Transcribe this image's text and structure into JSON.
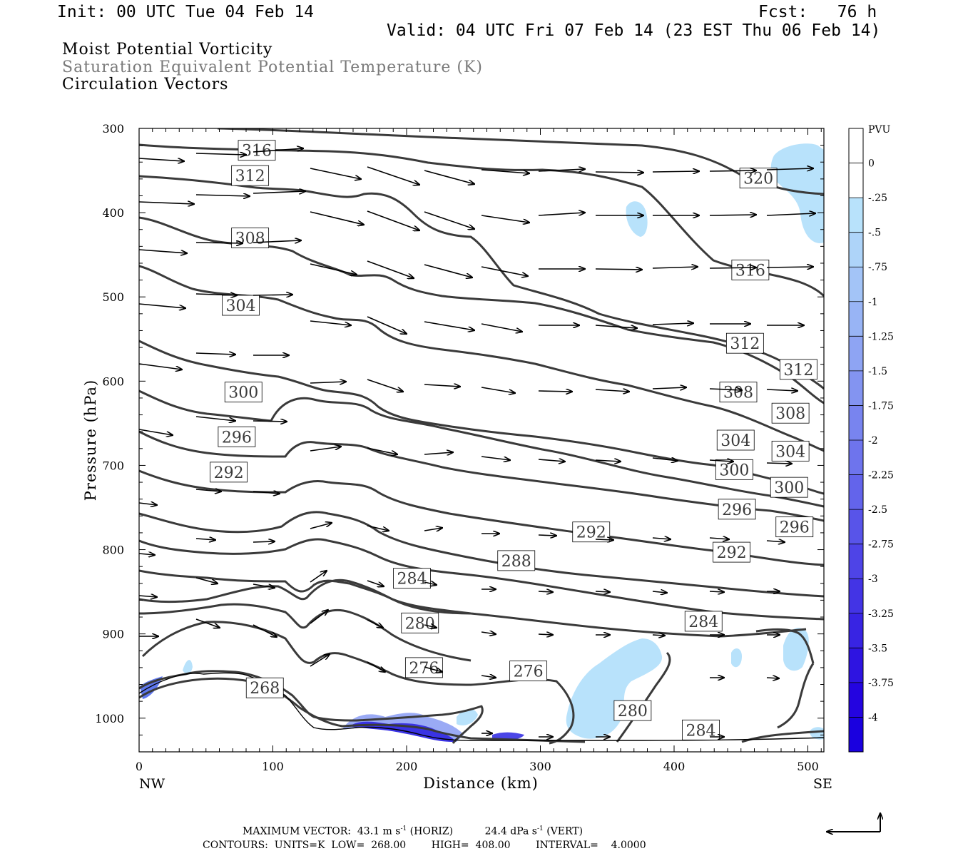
{
  "header": {
    "init": "Init: 00 UTC Tue 04 Feb 14",
    "fcst": "Fcst:   76 h",
    "valid": "Valid: 04 UTC Fri 07 Feb 14 (23 EST Thu 06 Feb 14)"
  },
  "legend": {
    "line1": "Moist Potential Vorticity",
    "line2": "Saturation Equivalent Potential Temperature (K)",
    "line3": "Circulation Vectors"
  },
  "footer": {
    "max_vector_label": "MAXIMUM VECTOR:",
    "max_horiz": "43.1 m s",
    "max_horiz_units": "(HORIZ)",
    "max_vert": "24.4 dPa s",
    "max_vert_units": "(VERT)",
    "exp": "-1",
    "contours_line": "CONTOURS:  UNITS=K  LOW=  268.00        HIGH=  408.00        INTERVAL=    4.0000"
  },
  "colorbar": {
    "title": "PVU",
    "labels": [
      "0",
      "-.25",
      "-.5",
      "-.75",
      "-1",
      "-1.25",
      "-1.5",
      "-1.75",
      "-2",
      "-2.25",
      "-2.5",
      "-2.75",
      "-3",
      "-3.25",
      "-3.5",
      "-3.75",
      "-4"
    ],
    "colors": [
      "#ffffff",
      "#ffffff",
      "#b8e2fb",
      "#aed4f9",
      "#a3c4f7",
      "#98b4f5",
      "#8ea4f3",
      "#8394f1",
      "#7884ef",
      "#6e74ed",
      "#6364eb",
      "#5854e9",
      "#4e44e7",
      "#4334e5",
      "#3824e3",
      "#2e14e1",
      "#2404e0",
      "#1a00df"
    ]
  },
  "chart_data": {
    "type": "cross-section",
    "xlabel": "Distance (km)",
    "ylabel": "Pressure (hPa)",
    "xlim": [
      0,
      512
    ],
    "ylim": [
      1040,
      300
    ],
    "x_ticks": [
      0,
      100,
      200,
      300,
      400,
      500
    ],
    "y_ticks": [
      300,
      400,
      500,
      600,
      700,
      800,
      900,
      1000
    ],
    "x_end_labels": {
      "left": "NW",
      "right": "SE"
    },
    "contour_units": "K",
    "contour_low": 268,
    "contour_high": 408,
    "contour_interval": 4,
    "contour_labels": [
      {
        "value": "316",
        "x": 88,
        "p": 326
      },
      {
        "value": "312",
        "x": 83,
        "p": 356
      },
      {
        "value": "308",
        "x": 83,
        "p": 430
      },
      {
        "value": "304",
        "x": 76,
        "p": 510
      },
      {
        "value": "300",
        "x": 78,
        "p": 613
      },
      {
        "value": "296",
        "x": 73,
        "p": 666
      },
      {
        "value": "292",
        "x": 67,
        "p": 708
      },
      {
        "value": "288",
        "x": 282,
        "p": 813
      },
      {
        "value": "292",
        "x": 338,
        "p": 779
      },
      {
        "value": "284",
        "x": 204,
        "p": 834
      },
      {
        "value": "280",
        "x": 210,
        "p": 887
      },
      {
        "value": "276",
        "x": 213,
        "p": 940
      },
      {
        "value": "276",
        "x": 291,
        "p": 944
      },
      {
        "value": "268",
        "x": 94,
        "p": 964
      },
      {
        "value": "280",
        "x": 369,
        "p": 991
      },
      {
        "value": "284",
        "x": 420,
        "p": 1014
      },
      {
        "value": "284",
        "x": 422,
        "p": 885
      },
      {
        "value": "292",
        "x": 443,
        "p": 803
      },
      {
        "value": "296",
        "x": 447,
        "p": 752
      },
      {
        "value": "300",
        "x": 445,
        "p": 705
      },
      {
        "value": "304",
        "x": 446,
        "p": 670
      },
      {
        "value": "308",
        "x": 448,
        "p": 613
      },
      {
        "value": "312",
        "x": 453,
        "p": 555
      },
      {
        "value": "316",
        "x": 457,
        "p": 468
      },
      {
        "value": "320",
        "x": 463,
        "p": 359
      },
      {
        "value": "312",
        "x": 493,
        "p": 586
      },
      {
        "value": "308",
        "x": 487,
        "p": 638
      },
      {
        "value": "304",
        "x": 487,
        "p": 683
      },
      {
        "value": "300",
        "x": 486,
        "p": 726
      },
      {
        "value": "296",
        "x": 490,
        "p": 773
      }
    ]
  }
}
